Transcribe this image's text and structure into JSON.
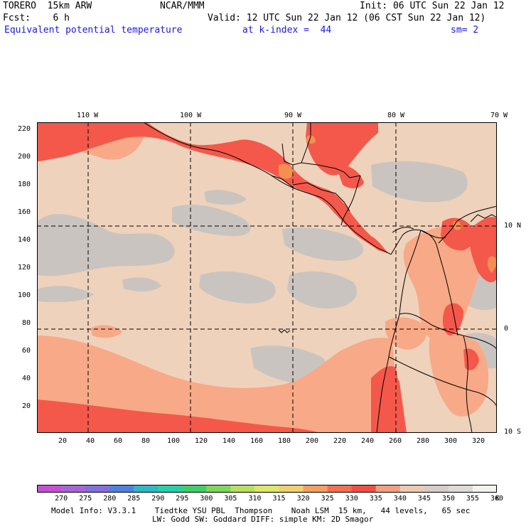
{
  "header": {
    "model": "TORERO  15km ARW",
    "org": "NCAR/MMM",
    "init": "Init: 06 UTC Sun 22 Jan 12",
    "fcst": "Fcst:    6 h",
    "valid": "Valid: 12 UTC Sun 22 Jan 12 (06 CST Sun 22 Jan 12)",
    "field": "Equivalent potential temperature",
    "level": "at k-index =  44",
    "smooth": "sm= 2"
  },
  "map": {
    "top_lon_labels": [
      "110 W",
      "100 W",
      "90 W",
      "80 W",
      "70 W"
    ],
    "right_lat_labels": [
      "10 N",
      "0",
      "10 S"
    ],
    "left_grid_labels": [
      "220",
      "200",
      "180",
      "160",
      "140",
      "120",
      "100",
      "80",
      "60",
      "40",
      "20"
    ],
    "bottom_grid_labels": [
      "20",
      "40",
      "60",
      "80",
      "100",
      "120",
      "140",
      "160",
      "180",
      "200",
      "220",
      "240",
      "260",
      "280",
      "300",
      "320"
    ],
    "colors": {
      "ocean_base": "#efd2bb",
      "cool_gray": "#cac4c0",
      "warm_salmon": "#f8a987",
      "hot_red": "#f4584b",
      "hottest_orange": "#f48f52",
      "coastline": "#000000"
    }
  },
  "colorbar": {
    "labels": [
      "270",
      "275",
      "280",
      "285",
      "290",
      "295",
      "300",
      "305",
      "310",
      "315",
      "320",
      "325",
      "330",
      "335",
      "340",
      "345",
      "350",
      "355",
      "360"
    ],
    "unit": "K",
    "colors": [
      "#c550d4",
      "#a567d8",
      "#8370e0",
      "#4f82e0",
      "#2fb8c8",
      "#28d0a8",
      "#3fcf6a",
      "#7fd85a",
      "#b8e05e",
      "#dde868",
      "#f0d070",
      "#f4a060",
      "#f47050",
      "#f44e44",
      "#f4a080",
      "#ecc9b0",
      "#d4cdc8",
      "#dedad8",
      "#f4f2f0"
    ]
  },
  "footer": {
    "line1": "Model Info: V3.3.1    Tiedtke YSU PBL  Thompson    Noah LSM  15 km,   44 levels,   65 sec",
    "line2": "LW: Godd SW: Goddard DIFF: simple KM: 2D Smagor"
  }
}
